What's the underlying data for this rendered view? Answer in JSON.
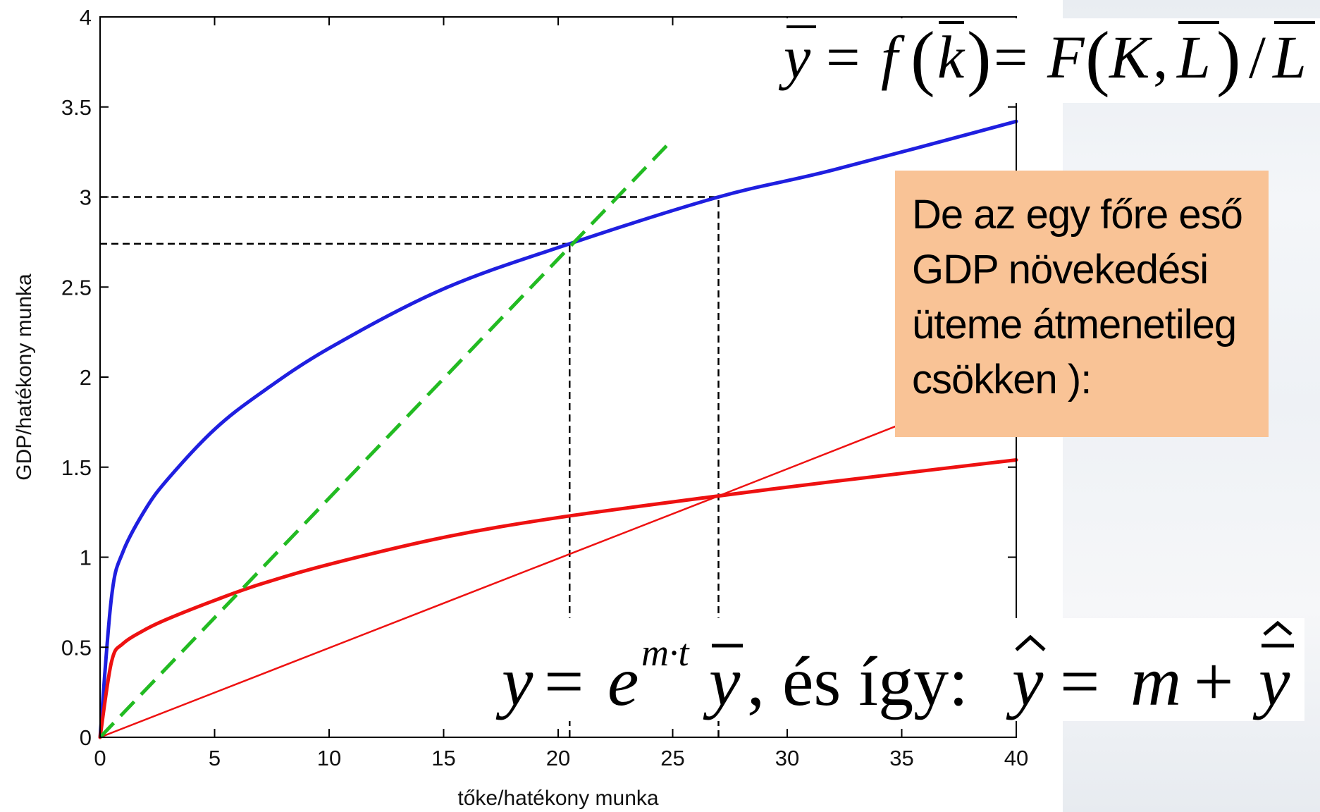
{
  "chart_data": {
    "type": "line",
    "xlabel": "tőke/hatékony munka",
    "ylabel": "GDP/hatékony munka",
    "xlim": [
      0,
      40
    ],
    "ylim": [
      0,
      4
    ],
    "x_ticks": [
      "0",
      "5",
      "10",
      "15",
      "20",
      "25",
      "30",
      "35",
      "40"
    ],
    "y_ticks": [
      "0",
      "0.5",
      "1",
      "1.5",
      "2",
      "2.5",
      "3",
      "3.5",
      "4"
    ],
    "grid": false,
    "series": [
      {
        "color": "#1f1fe0",
        "style": "thick",
        "x": [
          0,
          0.5,
          1,
          2,
          3,
          5,
          7,
          10,
          15,
          20.5,
          27,
          32,
          40
        ],
        "y": [
          0,
          0.78,
          1.03,
          1.27,
          1.44,
          1.71,
          1.91,
          2.16,
          2.49,
          2.74,
          3.0,
          3.15,
          3.42
        ]
      },
      {
        "color": "#ee1111",
        "style": "thick",
        "x": [
          0,
          0.5,
          1,
          2,
          3,
          5,
          7,
          10,
          15,
          20,
          27,
          32,
          40
        ],
        "y": [
          0,
          0.42,
          0.52,
          0.6,
          0.66,
          0.76,
          0.85,
          0.96,
          1.11,
          1.22,
          1.34,
          1.42,
          1.54
        ]
      },
      {
        "color": "#ee1111",
        "style": "thin",
        "x": [
          0,
          27,
          35.4
        ],
        "y": [
          0,
          1.34,
          1.76
        ]
      },
      {
        "color": "#22bb22",
        "style": "dashed",
        "x": [
          0,
          25
        ],
        "y": [
          0,
          3.32
        ]
      }
    ],
    "reference_lines": [
      {
        "color": "#000000",
        "x_from": 0,
        "x_to": 27,
        "y": 3.0
      },
      {
        "color": "#000000",
        "x_from": 0,
        "x_to": 20.5,
        "y": 2.74
      },
      {
        "color": "#000000",
        "x": 20.5,
        "y_from": 0,
        "y_to": 2.74
      },
      {
        "color": "#000000",
        "x": 27,
        "y_from": 0,
        "y_to": 3.0
      }
    ]
  },
  "formula_top": {
    "lhs": "y",
    "eq1": "=",
    "f": "f",
    "paren_l1": "(",
    "arg1": "k",
    "paren_r1": ")",
    "eq2": "=",
    "F": "F",
    "paren_l2": "(",
    "arg_K": "K",
    "comma": ",",
    "arg_L": "L",
    "paren_r2": ")",
    "slash": "/",
    "denom": "L"
  },
  "formula_bottom": {
    "y": "y",
    "eq1": "=",
    "e": "e",
    "exponent": "m·t",
    "ybar": "y",
    "text": ", és így:",
    "yhat": "y",
    "eq2": "=",
    "m": "m",
    "plus": "+",
    "ybarhat": "y"
  },
  "note": {
    "lines": [
      "De az egy főre eső",
      "GDP növekedési",
      "üteme átmenetileg",
      "csökken ):"
    ]
  }
}
